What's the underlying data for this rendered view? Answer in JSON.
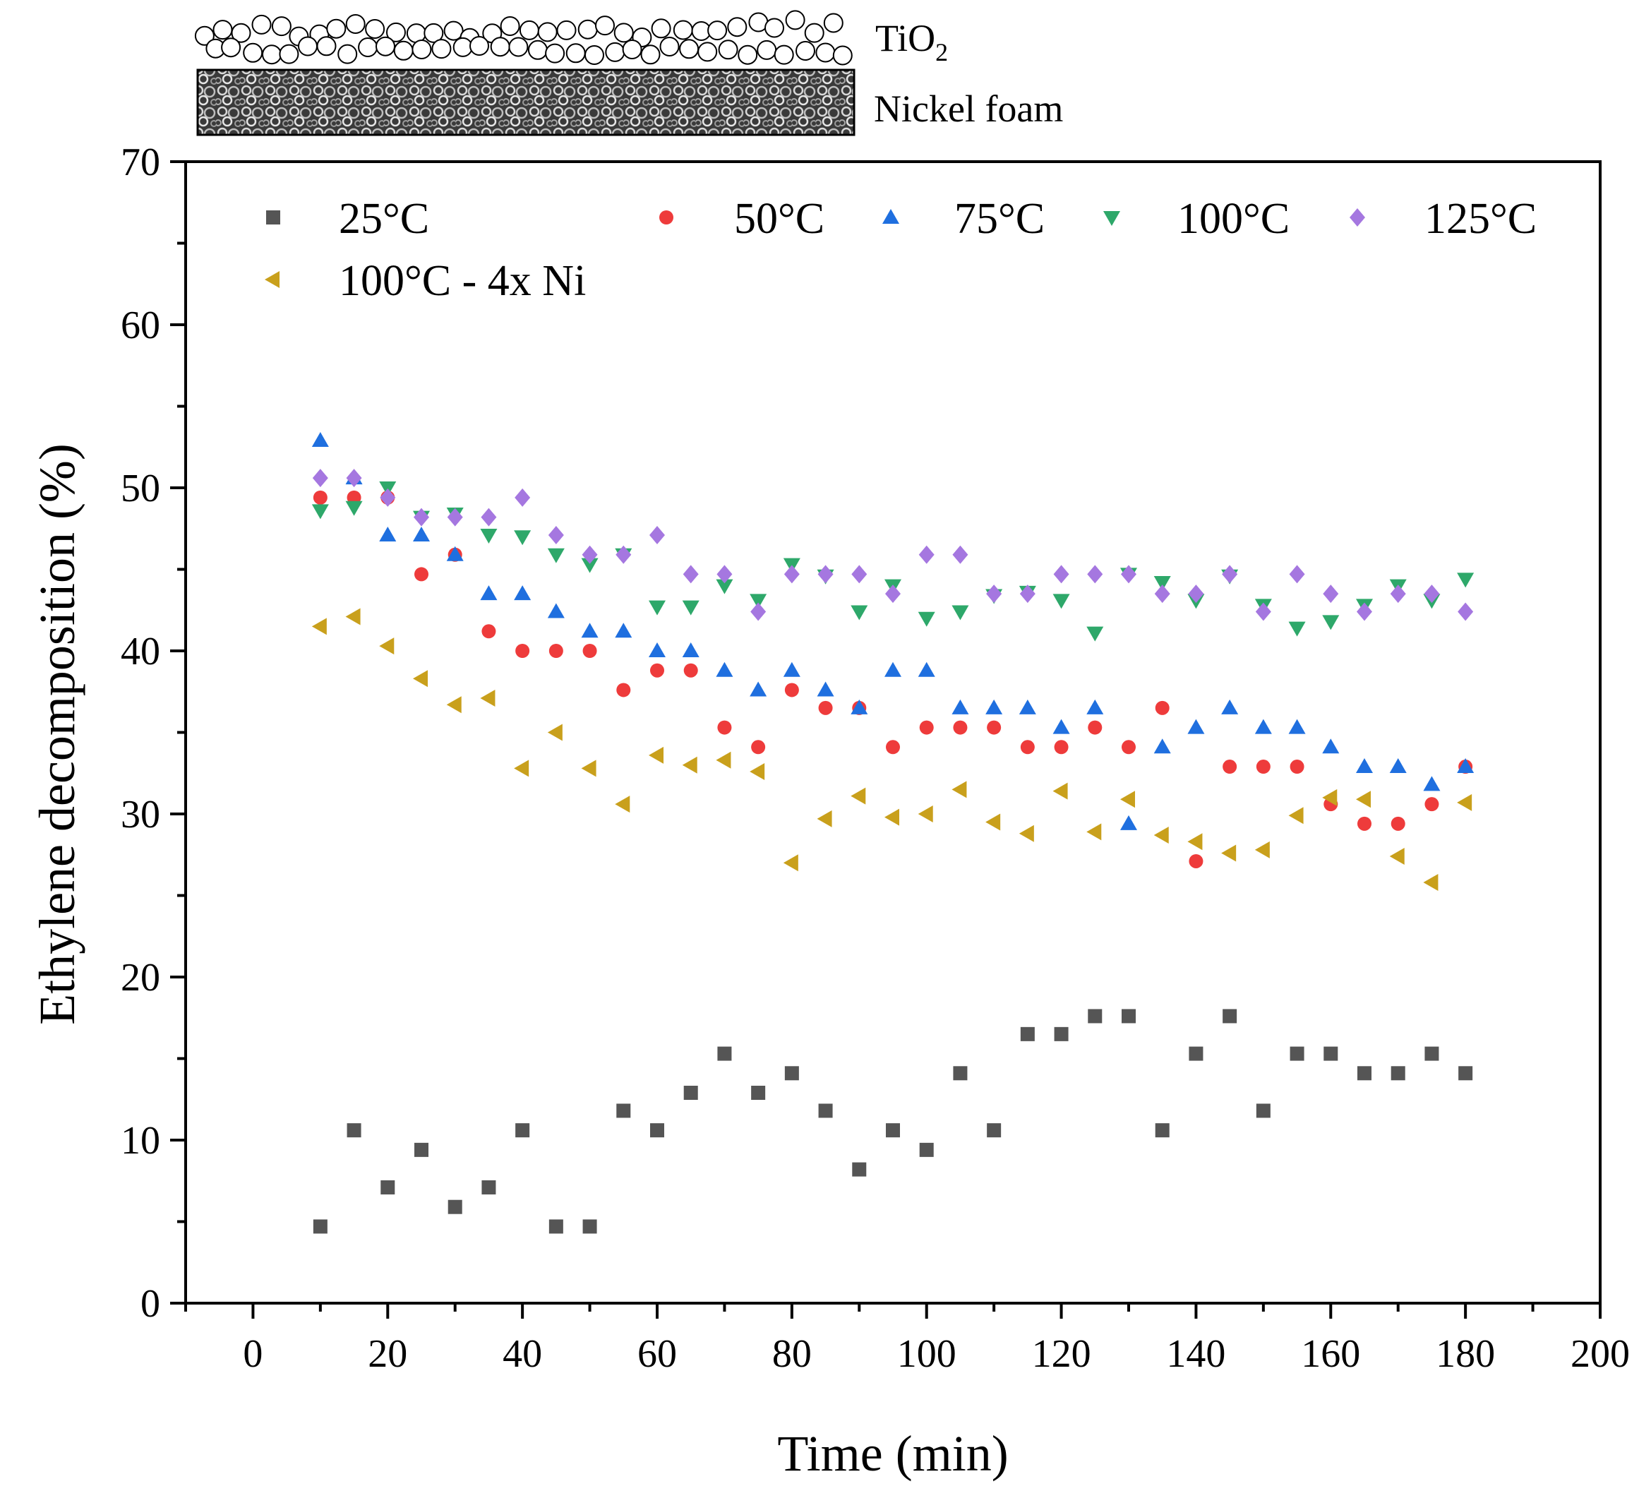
{
  "illustration": {
    "tio2_label_main": "TiO",
    "tio2_label_sub": "2",
    "foam_label": "Nickel foam"
  },
  "chart_data": {
    "type": "scatter",
    "title": "",
    "xlabel": "Time (min)",
    "ylabel": "Ethylene decomposition (%)",
    "xlim": [
      -10,
      200
    ],
    "ylim": [
      0,
      70
    ],
    "x_ticks": [
      0,
      20,
      40,
      60,
      80,
      100,
      120,
      140,
      160,
      180,
      200
    ],
    "y_ticks": [
      0,
      10,
      20,
      30,
      40,
      50,
      60,
      70
    ],
    "grid": false,
    "legend_position": "top",
    "x": [
      10,
      15,
      20,
      25,
      30,
      35,
      40,
      45,
      50,
      55,
      60,
      65,
      70,
      75,
      80,
      85,
      90,
      95,
      100,
      105,
      110,
      115,
      120,
      125,
      130,
      135,
      140,
      145,
      150,
      155,
      160,
      165,
      170,
      175,
      180
    ],
    "series": [
      {
        "name": "25°C",
        "marker": "square",
        "color": "#555555",
        "values": [
          4.7,
          10.6,
          7.1,
          9.4,
          5.9,
          7.1,
          10.6,
          4.7,
          4.7,
          11.8,
          10.6,
          12.9,
          15.3,
          12.9,
          14.1,
          11.8,
          8.2,
          10.6,
          9.4,
          14.1,
          10.6,
          16.5,
          16.5,
          17.6,
          17.6,
          10.6,
          15.3,
          17.6,
          11.8,
          15.3,
          15.3,
          14.1,
          14.1,
          15.3,
          14.1
        ]
      },
      {
        "name": "50°C",
        "marker": "circle",
        "color": "#ee3b3b",
        "values": [
          49.4,
          49.4,
          49.4,
          44.7,
          45.9,
          41.2,
          40.0,
          40.0,
          40.0,
          37.6,
          38.8,
          38.8,
          35.3,
          34.1,
          37.6,
          36.5,
          36.5,
          34.1,
          35.3,
          35.3,
          35.3,
          34.1,
          34.1,
          35.3,
          34.1,
          36.5,
          27.1,
          32.9,
          32.9,
          32.9,
          30.6,
          29.4,
          29.4,
          30.6,
          32.9
        ]
      },
      {
        "name": "75°C",
        "marker": "triangle-up",
        "color": "#1f6fdf",
        "values": [
          52.9,
          50.6,
          47.1,
          47.1,
          45.9,
          43.5,
          43.5,
          42.4,
          41.2,
          41.2,
          40.0,
          40.0,
          38.8,
          37.6,
          38.8,
          37.6,
          36.5,
          38.8,
          38.8,
          36.5,
          36.5,
          36.5,
          35.3,
          36.5,
          29.4,
          34.1,
          35.3,
          36.5,
          35.3,
          35.3,
          34.1,
          32.9,
          32.9,
          31.8,
          32.9
        ]
      },
      {
        "name": "100°C",
        "marker": "triangle-down",
        "color": "#2ea86a",
        "values": [
          48.6,
          48.8,
          50.0,
          48.2,
          48.4,
          47.1,
          47.0,
          45.9,
          45.3,
          45.9,
          42.7,
          42.7,
          44.0,
          43.1,
          45.3,
          44.6,
          42.4,
          44.0,
          42.0,
          42.4,
          43.4,
          43.6,
          43.1,
          41.1,
          44.7,
          44.2,
          43.1,
          44.6,
          42.8,
          41.4,
          41.8,
          42.8,
          44.0,
          43.1,
          44.4
        ]
      },
      {
        "name": "125°C",
        "marker": "diamond",
        "color": "#a577e0",
        "values": [
          50.6,
          50.6,
          49.4,
          48.2,
          48.2,
          48.2,
          49.4,
          47.1,
          45.9,
          45.9,
          47.1,
          44.7,
          44.7,
          42.4,
          44.7,
          44.7,
          44.7,
          43.5,
          45.9,
          45.9,
          43.5,
          43.5,
          44.7,
          44.7,
          44.7,
          43.5,
          43.5,
          44.7,
          42.4,
          44.7,
          43.5,
          42.4,
          43.5,
          43.5,
          42.4
        ]
      },
      {
        "name": "100°C - 4x Ni",
        "marker": "triangle-left",
        "color": "#c9a01c",
        "values": [
          41.5,
          42.1,
          40.3,
          38.3,
          36.7,
          37.1,
          32.8,
          35.0,
          32.8,
          30.6,
          33.6,
          33.0,
          33.3,
          32.6,
          27.0,
          29.7,
          31.1,
          29.8,
          30.0,
          31.5,
          29.5,
          28.8,
          31.4,
          28.9,
          30.9,
          28.7,
          28.3,
          27.6,
          27.8,
          29.9,
          31.0,
          30.9,
          27.4,
          25.8,
          30.7
        ]
      }
    ]
  }
}
